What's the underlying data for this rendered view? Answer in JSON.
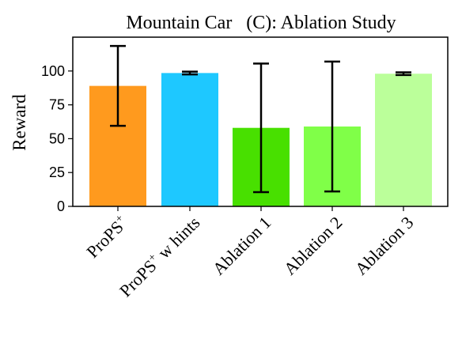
{
  "chart_data": {
    "type": "bar",
    "title": "Mountain Car   (C): Ablation Study",
    "xlabel": "",
    "ylabel": "Reward",
    "ylim": [
      0,
      125
    ],
    "yticks": [
      0,
      25,
      50,
      75,
      100
    ],
    "categories": [
      {
        "base": "ProPS",
        "sup": "+",
        "suffix": ""
      },
      {
        "base": "ProPS",
        "sup": "+",
        "suffix": "  w  hints"
      },
      {
        "base": "Ablation 1",
        "sup": "",
        "suffix": ""
      },
      {
        "base": "Ablation 2",
        "sup": "",
        "suffix": ""
      },
      {
        "base": "Ablation 3",
        "sup": "",
        "suffix": ""
      }
    ],
    "values": [
      89,
      98.5,
      58,
      59,
      98
    ],
    "errors": [
      29.5,
      1,
      47.5,
      48,
      1
    ],
    "colors": [
      "#ff9a1e",
      "#1ec8ff",
      "#48e000",
      "#80ff48",
      "#bbff9a"
    ],
    "grid": false,
    "legend": "none"
  }
}
